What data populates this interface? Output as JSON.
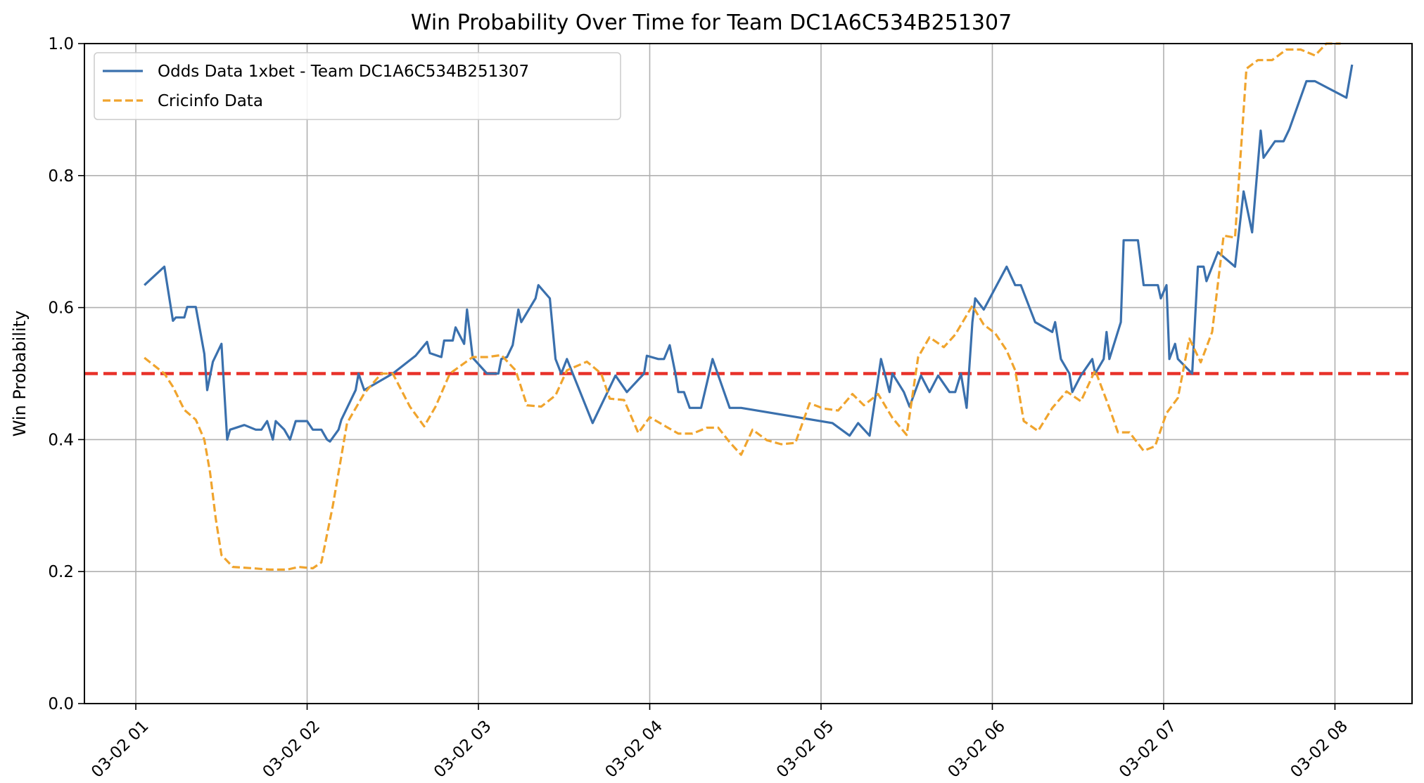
{
  "chart_data": {
    "type": "line",
    "title": "Win Probability Over Time for Team DC1A6C534B251307",
    "xlabel": "",
    "ylabel": "Win Probability",
    "xlim": [
      "03-02 00:42",
      "03-02 08:27"
    ],
    "ylim": [
      0,
      1
    ],
    "x_ticks": [
      "03-02 01",
      "03-02 02",
      "03-02 03",
      "03-02 04",
      "03-02 05",
      "03-02 06",
      "03-02 07",
      "03-02 08"
    ],
    "y_ticks": [
      "0.0",
      "0.2",
      "0.4",
      "0.6",
      "0.8",
      "1.0"
    ],
    "grid": true,
    "legend_position": "top-left",
    "reference_line": {
      "y": 0.5,
      "color": "#e8322a",
      "style": "dashed"
    },
    "series": [
      {
        "name": "Odds Data 1xbet - Team DC1A6C534B251307",
        "color": "#3a70ad",
        "style": "solid",
        "points": [
          [
            "03-02 01:03",
            0.634
          ],
          [
            "03-02 01:10",
            0.662
          ],
          [
            "03-02 01:13",
            0.58
          ],
          [
            "03-02 01:14",
            0.585
          ],
          [
            "03-02 01:17",
            0.585
          ],
          [
            "03-02 01:18",
            0.601
          ],
          [
            "03-02 01:21",
            0.601
          ],
          [
            "03-02 01:24",
            0.53
          ],
          [
            "03-02 01:25",
            0.475
          ],
          [
            "03-02 01:27",
            0.518
          ],
          [
            "03-02 01:30",
            0.545
          ],
          [
            "03-02 01:32",
            0.4
          ],
          [
            "03-02 01:33",
            0.415
          ],
          [
            "03-02 01:38",
            0.422
          ],
          [
            "03-02 01:42",
            0.415
          ],
          [
            "03-02 01:44",
            0.415
          ],
          [
            "03-02 01:46",
            0.428
          ],
          [
            "03-02 01:48",
            0.4
          ],
          [
            "03-02 01:49",
            0.428
          ],
          [
            "03-02 01:52",
            0.415
          ],
          [
            "03-02 01:54",
            0.4
          ],
          [
            "03-02 01:56",
            0.428
          ],
          [
            "03-02 02:00",
            0.428
          ],
          [
            "03-02 02:02",
            0.415
          ],
          [
            "03-02 02:05",
            0.415
          ],
          [
            "03-02 02:07",
            0.4
          ],
          [
            "03-02 02:08",
            0.397
          ],
          [
            "03-02 02:11",
            0.415
          ],
          [
            "03-02 02:12",
            0.43
          ],
          [
            "03-02 02:17",
            0.475
          ],
          [
            "03-02 02:18",
            0.5
          ],
          [
            "03-02 02:20",
            0.475
          ],
          [
            "03-02 02:30",
            0.5
          ],
          [
            "03-02 02:38",
            0.527
          ],
          [
            "03-02 02:42",
            0.548
          ],
          [
            "03-02 02:43",
            0.531
          ],
          [
            "03-02 02:47",
            0.525
          ],
          [
            "03-02 02:48",
            0.55
          ],
          [
            "03-02 02:51",
            0.55
          ],
          [
            "03-02 02:52",
            0.57
          ],
          [
            "03-02 02:55",
            0.545
          ],
          [
            "03-02 02:56",
            0.597
          ],
          [
            "03-02 02:58",
            0.524
          ],
          [
            "03-02 03:03",
            0.5
          ],
          [
            "03-02 03:07",
            0.5
          ],
          [
            "03-02 03:08",
            0.522
          ],
          [
            "03-02 03:10",
            0.525
          ],
          [
            "03-02 03:12",
            0.543
          ],
          [
            "03-02 03:14",
            0.597
          ],
          [
            "03-02 03:15",
            0.578
          ],
          [
            "03-02 03:20",
            0.614
          ],
          [
            "03-02 03:21",
            0.634
          ],
          [
            "03-02 03:25",
            0.614
          ],
          [
            "03-02 03:27",
            0.522
          ],
          [
            "03-02 03:29",
            0.5
          ],
          [
            "03-02 03:31",
            0.522
          ],
          [
            "03-02 03:40",
            0.425
          ],
          [
            "03-02 03:48",
            0.497
          ],
          [
            "03-02 03:52",
            0.472
          ],
          [
            "03-02 03:58",
            0.5
          ],
          [
            "03-02 03:59",
            0.527
          ],
          [
            "03-02 04:03",
            0.522
          ],
          [
            "03-02 04:05",
            0.522
          ],
          [
            "03-02 04:07",
            0.543
          ],
          [
            "03-02 04:09",
            0.5
          ],
          [
            "03-02 04:10",
            0.472
          ],
          [
            "03-02 04:12",
            0.472
          ],
          [
            "03-02 04:14",
            0.448
          ],
          [
            "03-02 04:18",
            0.448
          ],
          [
            "03-02 04:22",
            0.522
          ],
          [
            "03-02 04:28",
            0.448
          ],
          [
            "03-02 04:32",
            0.448
          ],
          [
            "03-02 05:04",
            0.425
          ],
          [
            "03-02 05:10",
            0.406
          ],
          [
            "03-02 05:13",
            0.425
          ],
          [
            "03-02 05:17",
            0.406
          ],
          [
            "03-02 05:21",
            0.522
          ],
          [
            "03-02 05:24",
            0.472
          ],
          [
            "03-02 05:25",
            0.5
          ],
          [
            "03-02 05:29",
            0.472
          ],
          [
            "03-02 05:31",
            0.45
          ],
          [
            "03-02 05:35",
            0.497
          ],
          [
            "03-02 05:38",
            0.472
          ],
          [
            "03-02 05:41",
            0.497
          ],
          [
            "03-02 05:45",
            0.472
          ],
          [
            "03-02 05:47",
            0.472
          ],
          [
            "03-02 05:49",
            0.5
          ],
          [
            "03-02 05:51",
            0.448
          ],
          [
            "03-02 05:53",
            0.578
          ],
          [
            "03-02 05:54",
            0.614
          ],
          [
            "03-02 05:57",
            0.597
          ],
          [
            "03-02 06:05",
            0.662
          ],
          [
            "03-02 06:08",
            0.634
          ],
          [
            "03-02 06:10",
            0.634
          ],
          [
            "03-02 06:15",
            0.578
          ],
          [
            "03-02 06:21",
            0.563
          ],
          [
            "03-02 06:22",
            0.578
          ],
          [
            "03-02 06:24",
            0.522
          ],
          [
            "03-02 06:27",
            0.5
          ],
          [
            "03-02 06:28",
            0.472
          ],
          [
            "03-02 06:31",
            0.497
          ],
          [
            "03-02 06:35",
            0.522
          ],
          [
            "03-02 06:36",
            0.5
          ],
          [
            "03-02 06:39",
            0.522
          ],
          [
            "03-02 06:40",
            0.563
          ],
          [
            "03-02 06:41",
            0.522
          ],
          [
            "03-02 06:45",
            0.578
          ],
          [
            "03-02 06:46",
            0.702
          ],
          [
            "03-02 06:51",
            0.702
          ],
          [
            "03-02 06:53",
            0.634
          ],
          [
            "03-02 06:58",
            0.634
          ],
          [
            "03-02 06:59",
            0.614
          ],
          [
            "03-02 07:01",
            0.634
          ],
          [
            "03-02 07:02",
            0.522
          ],
          [
            "03-02 07:04",
            0.545
          ],
          [
            "03-02 07:05",
            0.522
          ],
          [
            "03-02 07:10",
            0.5
          ],
          [
            "03-02 07:12",
            0.662
          ],
          [
            "03-02 07:14",
            0.662
          ],
          [
            "03-02 07:15",
            0.64
          ],
          [
            "03-02 07:17",
            0.662
          ],
          [
            "03-02 07:19",
            0.684
          ],
          [
            "03-02 07:25",
            0.662
          ],
          [
            "03-02 07:28",
            0.776
          ],
          [
            "03-02 07:31",
            0.714
          ],
          [
            "03-02 07:34",
            0.868
          ],
          [
            "03-02 07:35",
            0.827
          ],
          [
            "03-02 07:39",
            0.852
          ],
          [
            "03-02 07:42",
            0.852
          ],
          [
            "03-02 07:44",
            0.87
          ],
          [
            "03-02 07:50",
            0.943
          ],
          [
            "03-02 07:53",
            0.943
          ],
          [
            "03-02 08:04",
            0.918
          ],
          [
            "03-02 08:06",
            0.968
          ]
        ]
      },
      {
        "name": "Cricinfo Data",
        "color": "#f0a42d",
        "style": "dashed",
        "points": [
          [
            "03-02 01:03",
            0.524
          ],
          [
            "03-02 01:10",
            0.5
          ],
          [
            "03-02 01:13",
            0.48
          ],
          [
            "03-02 01:17",
            0.445
          ],
          [
            "03-02 01:21",
            0.43
          ],
          [
            "03-02 01:24",
            0.4
          ],
          [
            "03-02 01:26",
            0.35
          ],
          [
            "03-02 01:28",
            0.28
          ],
          [
            "03-02 01:30",
            0.225
          ],
          [
            "03-02 01:34",
            0.207
          ],
          [
            "03-02 01:41",
            0.205
          ],
          [
            "03-02 01:47",
            0.203
          ],
          [
            "03-02 01:53",
            0.203
          ],
          [
            "03-02 01:57",
            0.207
          ],
          [
            "03-02 02:02",
            0.205
          ],
          [
            "03-02 02:05",
            0.214
          ],
          [
            "03-02 02:09",
            0.3
          ],
          [
            "03-02 02:14",
            0.425
          ],
          [
            "03-02 02:20",
            0.47
          ],
          [
            "03-02 02:26",
            0.5
          ],
          [
            "03-02 02:30",
            0.5
          ],
          [
            "03-02 02:36",
            0.45
          ],
          [
            "03-02 02:41",
            0.42
          ],
          [
            "03-02 02:45",
            0.45
          ],
          [
            "03-02 02:50",
            0.5
          ],
          [
            "03-02 02:58",
            0.525
          ],
          [
            "03-02 03:03",
            0.525
          ],
          [
            "03-02 03:08",
            0.528
          ],
          [
            "03-02 03:13",
            0.505
          ],
          [
            "03-02 03:17",
            0.452
          ],
          [
            "03-02 03:22",
            0.45
          ],
          [
            "03-02 03:27",
            0.467
          ],
          [
            "03-02 03:31",
            0.505
          ],
          [
            "03-02 03:38",
            0.518
          ],
          [
            "03-02 03:43",
            0.5
          ],
          [
            "03-02 03:46",
            0.462
          ],
          [
            "03-02 03:51",
            0.46
          ],
          [
            "03-02 03:56",
            0.41
          ],
          [
            "03-02 04:00",
            0.434
          ],
          [
            "03-02 04:06",
            0.419
          ],
          [
            "03-02 04:10",
            0.409
          ],
          [
            "03-02 04:15",
            0.409
          ],
          [
            "03-02 04:20",
            0.418
          ],
          [
            "03-02 04:24",
            0.418
          ],
          [
            "03-02 04:28",
            0.396
          ],
          [
            "03-02 04:32",
            0.377
          ],
          [
            "03-02 04:36",
            0.415
          ],
          [
            "03-02 04:41",
            0.399
          ],
          [
            "03-02 04:46",
            0.393
          ],
          [
            "03-02 04:51",
            0.395
          ],
          [
            "03-02 04:56",
            0.455
          ],
          [
            "03-02 05:01",
            0.447
          ],
          [
            "03-02 05:06",
            0.444
          ],
          [
            "03-02 05:11",
            0.469
          ],
          [
            "03-02 05:15",
            0.452
          ],
          [
            "03-02 05:20",
            0.469
          ],
          [
            "03-02 05:25",
            0.433
          ],
          [
            "03-02 05:30",
            0.407
          ],
          [
            "03-02 05:34",
            0.525
          ],
          [
            "03-02 05:38",
            0.555
          ],
          [
            "03-02 05:43",
            0.54
          ],
          [
            "03-02 05:47",
            0.559
          ],
          [
            "03-02 05:53",
            0.603
          ],
          [
            "03-02 05:57",
            0.574
          ],
          [
            "03-02 06:01",
            0.561
          ],
          [
            "03-02 06:05",
            0.535
          ],
          [
            "03-02 06:08",
            0.505
          ],
          [
            "03-02 06:11",
            0.428
          ],
          [
            "03-02 06:16",
            0.413
          ],
          [
            "03-02 06:21",
            0.448
          ],
          [
            "03-02 06:26",
            0.473
          ],
          [
            "03-02 06:31",
            0.458
          ],
          [
            "03-02 06:36",
            0.505
          ],
          [
            "03-02 06:41",
            0.448
          ],
          [
            "03-02 06:44",
            0.411
          ],
          [
            "03-02 06:48",
            0.411
          ],
          [
            "03-02 06:53",
            0.383
          ],
          [
            "03-02 06:57",
            0.39
          ],
          [
            "03-02 07:01",
            0.44
          ],
          [
            "03-02 07:05",
            0.463
          ],
          [
            "03-02 07:09",
            0.553
          ],
          [
            "03-02 07:13",
            0.517
          ],
          [
            "03-02 07:17",
            0.563
          ],
          [
            "03-02 07:21",
            0.709
          ],
          [
            "03-02 07:25",
            0.706
          ],
          [
            "03-02 07:29",
            0.962
          ],
          [
            "03-02 07:33",
            0.975
          ],
          [
            "03-02 07:38",
            0.975
          ],
          [
            "03-02 07:43",
            0.991
          ],
          [
            "03-02 07:48",
            0.991
          ],
          [
            "03-02 07:53",
            0.982
          ],
          [
            "03-02 07:57",
            1.0
          ],
          [
            "03-02 08:02",
            1.0
          ]
        ]
      }
    ]
  }
}
